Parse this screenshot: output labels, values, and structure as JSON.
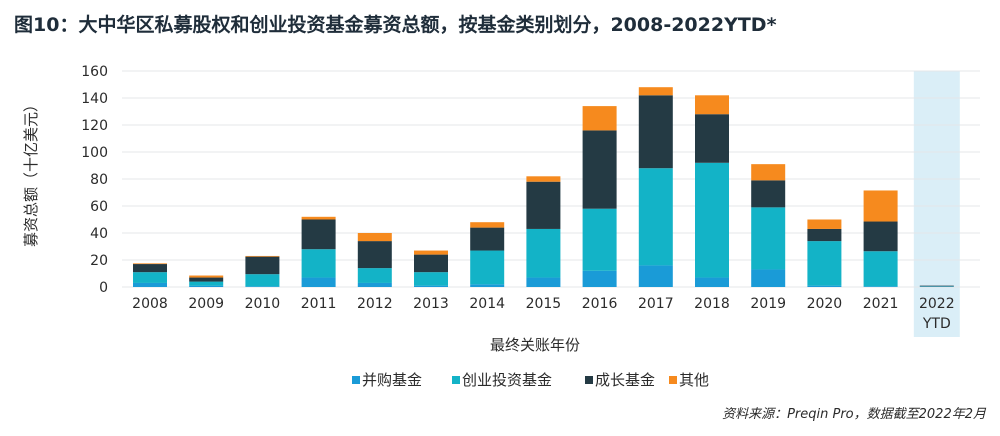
{
  "figure_title": "图10：大中华区私募股权和创业投资基金募资总额，按基金类别划分，2008-2022YTD*",
  "source_note": "资料来源：Preqin Pro，数据截至2022年2月",
  "colors": {
    "buyout": "#1a9bd7",
    "venture": "#13b3c7",
    "growth": "#243a44",
    "other": "#f68a1e",
    "ytd_band": "#daeef7",
    "gridline": "#e4e7ea"
  },
  "chart_data": {
    "type": "bar",
    "stacked": true,
    "title": "",
    "xlabel": "最终关账年份",
    "ylabel": "募资总额（十亿美元）",
    "ylim": [
      0,
      160
    ],
    "yticks": [
      0,
      20,
      40,
      60,
      80,
      100,
      120,
      140,
      160
    ],
    "grid": true,
    "legend_position": "bottom",
    "categories": [
      "2008",
      "2009",
      "2010",
      "2011",
      "2012",
      "2013",
      "2014",
      "2015",
      "2016",
      "2017",
      "2018",
      "2019",
      "2020",
      "2021",
      "2022 YTD"
    ],
    "highlight_category": "2022 YTD",
    "series": [
      {
        "name": "并购基金",
        "color_key": "buyout",
        "values": [
          3,
          1,
          0.5,
          7,
          3,
          1,
          2,
          7,
          12,
          16,
          7,
          13,
          1,
          0.5,
          0.2
        ]
      },
      {
        "name": "创业投资基金",
        "color_key": "venture",
        "values": [
          8,
          3,
          9,
          21,
          11,
          10,
          25,
          36,
          46,
          72,
          85,
          46,
          33,
          26,
          0.3
        ]
      },
      {
        "name": "成长基金",
        "color_key": "growth",
        "values": [
          6,
          3,
          13,
          22,
          20,
          13,
          17,
          35,
          58,
          54,
          36,
          20,
          9,
          22,
          0.5
        ]
      },
      {
        "name": "其他",
        "color_key": "other",
        "values": [
          0.5,
          1.5,
          0.5,
          2,
          6,
          3,
          4,
          4,
          18,
          6,
          14,
          12,
          7,
          23,
          0
        ]
      }
    ]
  }
}
